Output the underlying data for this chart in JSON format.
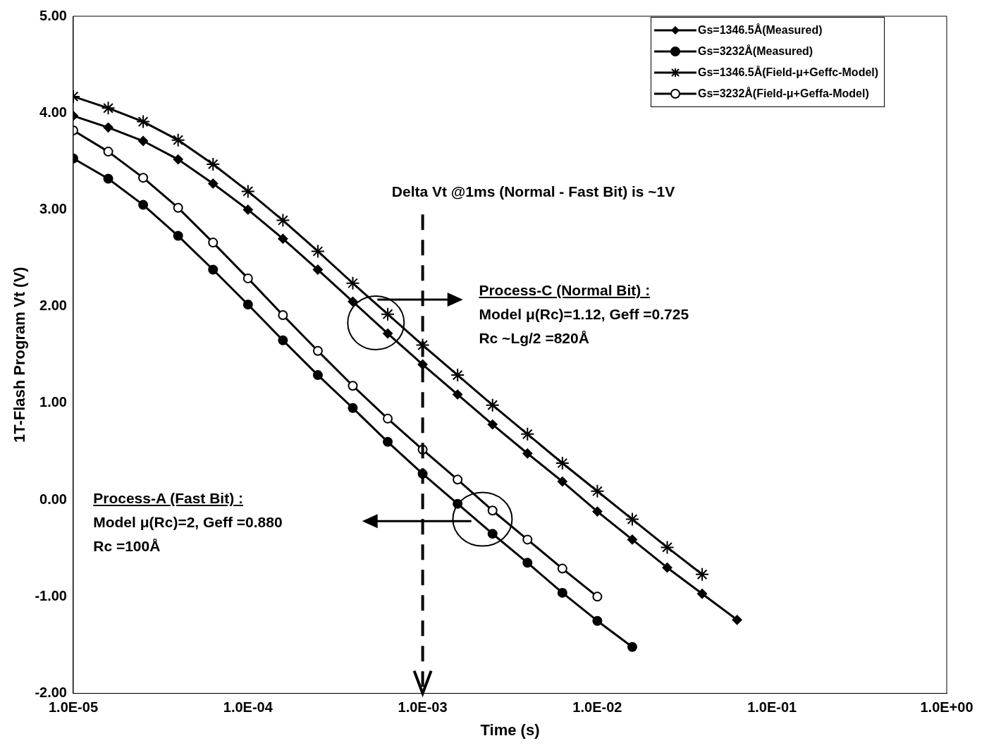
{
  "chart_data": {
    "type": "line",
    "xlabel": "Time (s)",
    "ylabel": "1T-Flash Program Vt (V)",
    "log": "x",
    "legend": "top right",
    "xlim": [
      1e-05,
      1
    ],
    "xticks": [
      {
        "value": 1e-05,
        "label": "1.0E-05"
      },
      {
        "value": 0.0001,
        "label": "1.0E-04"
      },
      {
        "value": 0.001,
        "label": "1.0E-03"
      },
      {
        "value": 0.01,
        "label": "1.0E-02"
      },
      {
        "value": 0.1,
        "label": "1.0E-01"
      },
      {
        "value": 1,
        "label": "1.0E+00"
      }
    ],
    "ylim": [
      -2,
      5
    ],
    "yticks": [
      {
        "value": -2,
        "label": "-2.00"
      },
      {
        "value": -1,
        "label": "-1.00"
      },
      {
        "value": 0,
        "label": "0.00"
      },
      {
        "value": 1,
        "label": "1.00"
      },
      {
        "value": 2,
        "label": "2.00"
      },
      {
        "value": 3,
        "label": "3.00"
      },
      {
        "value": 4,
        "label": "4.00"
      },
      {
        "value": 5,
        "label": "5.00"
      }
    ],
    "series": [
      {
        "name": "Gs=1346.5Å(Measured)",
        "color": "#000000",
        "marker": "diamond",
        "x": [
          1e-05,
          1.585e-05,
          2.512e-05,
          3.981e-05,
          6.31e-05,
          0.0001,
          0.0001585,
          0.0002512,
          0.0003981,
          0.000631,
          0.001,
          0.001585,
          0.002512,
          0.003981,
          0.00631,
          0.01,
          0.01585,
          0.02512,
          0.03981,
          0.0631
        ],
        "values": [
          3.97,
          3.85,
          3.71,
          3.52,
          3.27,
          3.0,
          2.7,
          2.38,
          2.05,
          1.72,
          1.4,
          1.09,
          0.78,
          0.48,
          0.19,
          -0.12,
          -0.41,
          -0.7,
          -0.97,
          -1.24
        ]
      },
      {
        "name": "Gs=3232Å(Measured)",
        "color": "#000000",
        "marker": "circle",
        "x": [
          1e-05,
          1.585e-05,
          2.512e-05,
          3.981e-05,
          6.31e-05,
          0.0001,
          0.0001585,
          0.0002512,
          0.0003981,
          0.000631,
          0.001,
          0.001585,
          0.002512,
          0.003981,
          0.00631,
          0.01,
          0.01585
        ],
        "values": [
          3.53,
          3.32,
          3.05,
          2.73,
          2.38,
          2.02,
          1.65,
          1.29,
          0.95,
          0.6,
          0.27,
          -0.04,
          -0.35,
          -0.65,
          -0.96,
          -1.25,
          -1.52
        ]
      },
      {
        "name": "Gs=1346.5Å(Field-μ+Geffc-Model)",
        "color": "#000000",
        "marker": "cross",
        "x": [
          1e-05,
          1.585e-05,
          2.512e-05,
          3.981e-05,
          6.31e-05,
          0.0001,
          0.0001585,
          0.0002512,
          0.0003981,
          0.000631,
          0.001,
          0.001585,
          0.002512,
          0.003981,
          0.00631,
          0.01,
          0.01585,
          0.02512,
          0.03981
        ],
        "values": [
          4.17,
          4.05,
          3.91,
          3.72,
          3.47,
          3.19,
          2.89,
          2.57,
          2.24,
          1.92,
          1.6,
          1.29,
          0.98,
          0.68,
          0.38,
          0.09,
          -0.2,
          -0.49,
          -0.77
        ]
      },
      {
        "name": "Gs=3232Å(Field-μ+Geffa-Model)",
        "color": "#000000",
        "marker": "circle",
        "x": [
          1e-05,
          1.585e-05,
          2.512e-05,
          3.981e-05,
          6.31e-05,
          0.0001,
          0.0001585,
          0.0002512,
          0.0003981,
          0.000631,
          0.001,
          0.001585,
          0.002512,
          0.003981,
          0.00631,
          0.01
        ],
        "values": [
          3.82,
          3.6,
          3.33,
          3.02,
          2.66,
          2.29,
          1.91,
          1.54,
          1.18,
          0.84,
          0.52,
          0.21,
          -0.11,
          -0.41,
          -0.71,
          -1.0
        ]
      }
    ],
    "annotations": [
      "Delta Vt @1ms (Normal - Fast Bit) is ~1V",
      "Process-C (Normal Bit) :",
      "Model μ(Rc)=1.12, Geff =0.725",
      "Rc ~Lg/2 =820Å",
      "Process-A (Fast Bit) :",
      "Model μ(Rc)=2, Geff =0.880",
      "Rc =100Å"
    ]
  }
}
